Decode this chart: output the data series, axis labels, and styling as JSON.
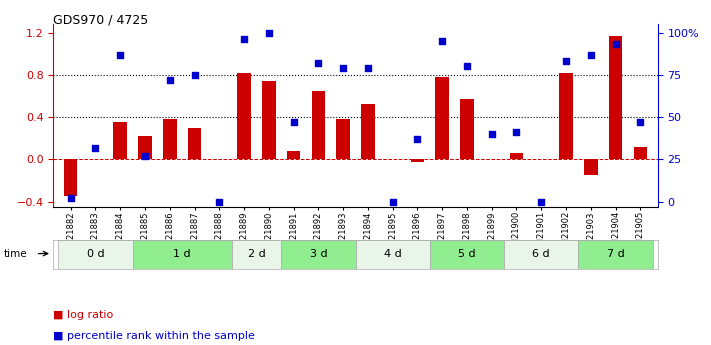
{
  "title": "GDS970 / 4725",
  "samples": [
    "GSM21882",
    "GSM21883",
    "GSM21884",
    "GSM21885",
    "GSM21886",
    "GSM21887",
    "GSM21888",
    "GSM21889",
    "GSM21890",
    "GSM21891",
    "GSM21892",
    "GSM21893",
    "GSM21894",
    "GSM21895",
    "GSM21896",
    "GSM21897",
    "GSM21898",
    "GSM21899",
    "GSM21900",
    "GSM21901",
    "GSM21902",
    "GSM21903",
    "GSM21904",
    "GSM21905"
  ],
  "log_ratio": [
    -0.35,
    0.0,
    0.35,
    0.22,
    0.38,
    0.3,
    0.0,
    0.82,
    0.74,
    0.08,
    0.65,
    0.38,
    0.52,
    0.0,
    -0.02,
    0.78,
    0.57,
    0.0,
    0.06,
    0.0,
    0.82,
    -0.15,
    1.17,
    0.12
  ],
  "percentile": [
    0.02,
    0.32,
    0.87,
    0.27,
    0.72,
    0.75,
    0.0,
    0.96,
    1.0,
    0.47,
    0.82,
    0.79,
    0.79,
    0.0,
    0.37,
    0.95,
    0.8,
    0.4,
    0.41,
    0.0,
    0.83,
    0.87,
    0.93,
    0.47
  ],
  "time_groups": [
    {
      "label": "0 d",
      "indices": [
        0,
        1,
        2
      ]
    },
    {
      "label": "1 d",
      "indices": [
        3,
        4,
        5,
        6
      ]
    },
    {
      "label": "2 d",
      "indices": [
        7,
        8
      ]
    },
    {
      "label": "3 d",
      "indices": [
        9,
        10,
        11
      ]
    },
    {
      "label": "4 d",
      "indices": [
        12,
        13,
        14
      ]
    },
    {
      "label": "5 d",
      "indices": [
        15,
        16,
        17
      ]
    },
    {
      "label": "6 d",
      "indices": [
        18,
        19,
        20
      ]
    },
    {
      "label": "7 d",
      "indices": [
        21,
        22,
        23
      ]
    }
  ],
  "group_colors_even": "#e8f5e8",
  "group_colors_odd": "#90ee90",
  "bar_color": "#cc0000",
  "dot_color": "#0000cc",
  "ylim_left": [
    -0.45,
    1.28
  ],
  "yticks_left": [
    -0.4,
    0.0,
    0.4,
    0.8,
    1.2
  ],
  "yticks_right": [
    0,
    25,
    50,
    75,
    100
  ],
  "dotted_lines": [
    0.4,
    0.8
  ],
  "bg_color": "#ffffff"
}
